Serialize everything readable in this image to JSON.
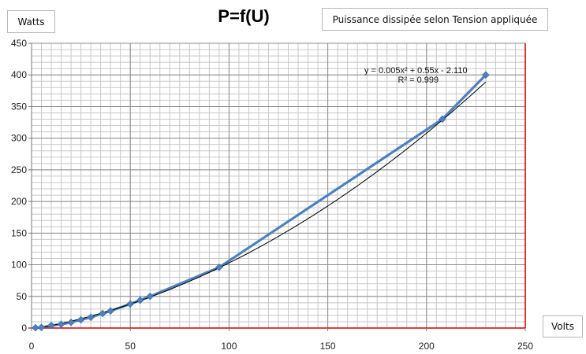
{
  "chart_data": {
    "type": "scatter",
    "title": "P=f(U)",
    "subtitle": "Puissance dissipée selon Tension appliquée",
    "xlabel": "Volts",
    "ylabel": "Watts",
    "xlim": [
      0,
      250
    ],
    "ylim": [
      0,
      450
    ],
    "x_ticks": [
      0,
      50,
      100,
      150,
      200,
      250
    ],
    "y_ticks": [
      0,
      50,
      100,
      150,
      200,
      250,
      300,
      350,
      400,
      450
    ],
    "grid": true,
    "series": [
      {
        "x": [
          2,
          5,
          10,
          15,
          20,
          25,
          30,
          36,
          40,
          50,
          55,
          60,
          95,
          208,
          230
        ],
        "y": [
          0.5,
          1,
          4,
          6,
          9,
          13,
          17,
          23,
          27,
          38,
          44,
          50,
          96,
          330,
          400
        ],
        "color": "#4f81bd"
      }
    ],
    "trendline": {
      "type": "polynomial",
      "order": 2,
      "coefficients": [
        0.005,
        0.55,
        -2.11
      ],
      "equation_label": "y = 0.005x² + 0.55x - 2.110",
      "r2_label": "R² = 0.999",
      "color": "#000000"
    }
  }
}
